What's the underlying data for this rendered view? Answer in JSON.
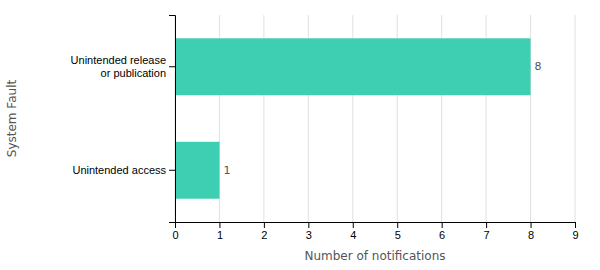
{
  "chart_data": {
    "type": "bar",
    "orientation": "horizontal",
    "categories": [
      "Unintended access",
      "Unintended release\nor publication"
    ],
    "values": [
      1,
      8
    ],
    "color": "#3ecfb2",
    "xlabel": "Number of notifications",
    "ylabel": "System Fault",
    "xlim": [
      0,
      9
    ],
    "xticks": [
      0,
      1,
      2,
      3,
      4,
      5,
      6,
      7,
      8,
      9
    ],
    "grid": true,
    "data_labels": true
  }
}
